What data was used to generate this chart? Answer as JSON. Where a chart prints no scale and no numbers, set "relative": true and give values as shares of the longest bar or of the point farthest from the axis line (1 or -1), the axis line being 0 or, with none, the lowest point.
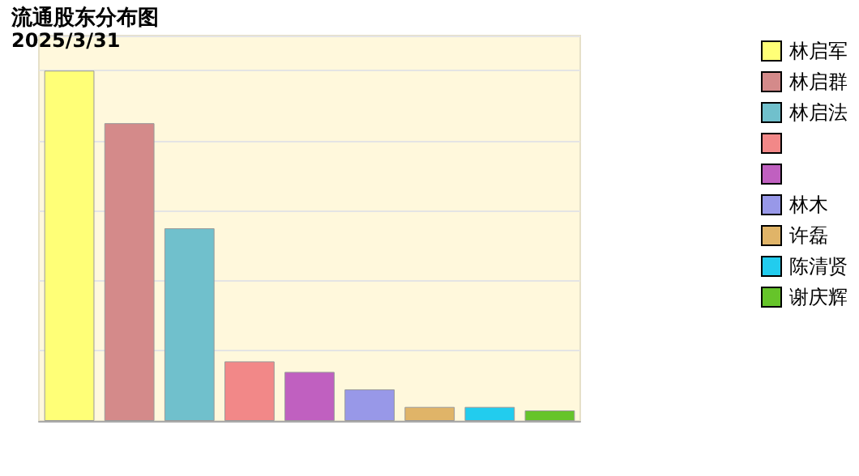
{
  "chart_data": {
    "type": "bar",
    "title": "流通股东分布图",
    "subtitle": "2025/3/31",
    "relative": true,
    "grid": true,
    "legend": "right",
    "categories": [
      null
    ],
    "series": [
      {
        "name": "林启军",
        "color": "#ffff77",
        "values": [
          1
        ]
      },
      {
        "name": "林启群",
        "color": "#d48a8a",
        "values": [
          0.85
        ]
      },
      {
        "name": "林启法",
        "color": "#70c0cc",
        "values": [
          0.55
        ]
      },
      {
        "color": "#f28888",
        "values": [
          0.17
        ]
      },
      {
        "color": "#c060c0",
        "values": [
          0.14
        ]
      },
      {
        "name": "林木",
        "color": "#9898e8",
        "values": [
          0.09
        ]
      },
      {
        "name": "许磊",
        "color": "#e0b468",
        "values": [
          0.04
        ]
      },
      {
        "name": "陈清贤",
        "color": "#22ccee",
        "values": [
          0.04
        ]
      },
      {
        "name": "谢庆辉",
        "color": "#66c42a",
        "values": [
          0.03
        ]
      }
    ]
  }
}
